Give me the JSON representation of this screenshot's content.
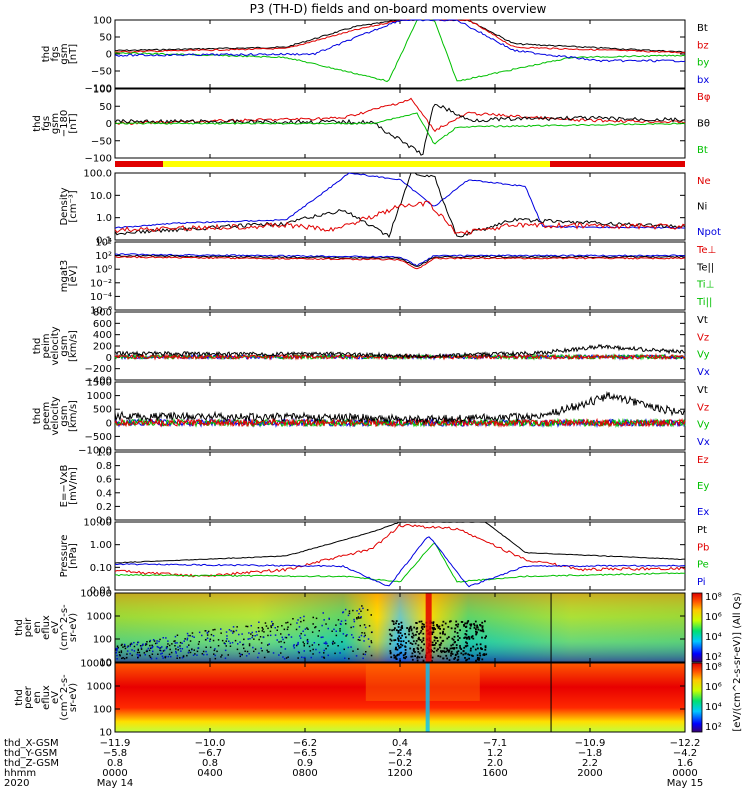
{
  "title": "P3 (TH-D) fields and on-board moments overview",
  "panels": [
    {
      "id": "fgs_gsm",
      "ylabel": [
        "thd",
        "fgs",
        "gsm",
        "[nT]"
      ],
      "ticks": [
        "100",
        "50",
        "0",
        "−50",
        "−100"
      ],
      "legend": [
        {
          "text": "Bt",
          "color": "#000000"
        },
        {
          "text": "bz",
          "color": "#e00000"
        },
        {
          "text": "by",
          "color": "#00c000"
        },
        {
          "text": "bx",
          "color": "#0000e0"
        }
      ]
    },
    {
      "id": "fgs_gsm180",
      "ylabel": [
        "thd",
        "fgs",
        "gsm",
        "−180",
        "[nT]"
      ],
      "ticks": [
        "100",
        "50",
        "0",
        "−50",
        "−100"
      ],
      "legend": [
        {
          "text": "Bφ",
          "color": "#e00000"
        },
        {
          "text": "Bθ",
          "color": "#000000"
        },
        {
          "text": "Bt",
          "color": "#00c000"
        }
      ]
    },
    {
      "id": "density",
      "ylabel": [
        "Density",
        "[cm⁻³]"
      ],
      "ticks": [
        "100.0",
        "10.0",
        "1.0",
        "0.1"
      ],
      "legend": [
        {
          "text": "Ne",
          "color": "#e00000"
        },
        {
          "text": "Ni",
          "color": "#000000"
        },
        {
          "text": "Npot",
          "color": "#0000e0"
        }
      ]
    },
    {
      "id": "temp",
      "ylabel": [
        "mgat3",
        "[eV]"
      ],
      "ticks": [
        "10⁴",
        "10²",
        "10⁰",
        "10⁻²",
        "10⁻⁴",
        "10⁻⁶"
      ],
      "legend": [
        {
          "text": "Te⊥",
          "color": "#e00000"
        },
        {
          "text": "Te||",
          "color": "#000000"
        },
        {
          "text": "Ti⊥",
          "color": "#00c000"
        },
        {
          "text": "Ti||",
          "color": "#00c000"
        }
      ]
    },
    {
      "id": "peim_vel",
      "ylabel": [
        "thd",
        "peim",
        "velocity",
        "gsm",
        "[km/s]"
      ],
      "ticks": [
        "800",
        "600",
        "400",
        "200",
        "0",
        "−200",
        "−400"
      ],
      "legend": [
        {
          "text": "Vt",
          "color": "#000000"
        },
        {
          "text": "Vz",
          "color": "#e00000"
        },
        {
          "text": "Vy",
          "color": "#00c000"
        },
        {
          "text": "Vx",
          "color": "#0000e0"
        }
      ]
    },
    {
      "id": "peem_vel",
      "ylabel": [
        "thd",
        "peem",
        "velocity",
        "gsm",
        "[km/s]"
      ],
      "ticks": [
        "1500",
        "1000",
        "500",
        "0",
        "−500",
        "−1000"
      ],
      "legend": [
        {
          "text": "Vt",
          "color": "#000000"
        },
        {
          "text": "Vz",
          "color": "#e00000"
        },
        {
          "text": "Vy",
          "color": "#00c000"
        },
        {
          "text": "Vx",
          "color": "#0000e0"
        }
      ]
    },
    {
      "id": "efield",
      "ylabel": [
        "E=−VxB",
        "[mV/m]"
      ],
      "ticks": [
        "1.0",
        "0.8",
        "0.6",
        "0.4",
        "0.2",
        "0.0"
      ],
      "legend": [
        {
          "text": "Ez",
          "color": "#e00000"
        },
        {
          "text": "Ey",
          "color": "#00c000"
        },
        {
          "text": "Ex",
          "color": "#0000e0"
        }
      ]
    },
    {
      "id": "pressure",
      "ylabel": [
        "Pressure",
        "[nPa]"
      ],
      "ticks": [
        "10.00",
        "1.00",
        "0.10",
        "0.01"
      ],
      "legend": [
        {
          "text": "Pt",
          "color": "#000000"
        },
        {
          "text": "Pb",
          "color": "#e00000"
        },
        {
          "text": "Pe",
          "color": "#00c000"
        },
        {
          "text": "Pi",
          "color": "#0000e0"
        }
      ]
    },
    {
      "id": "peir_spec",
      "ylabel": [
        "thd",
        "peir",
        "en",
        "eflux",
        "eV",
        "(cm^2-s-",
        "sr-eV)"
      ],
      "ticks": [
        "10000",
        "1000",
        "100",
        "10"
      ],
      "legend": []
    },
    {
      "id": "peer_spec",
      "ylabel": [
        "thd",
        "peer",
        "en",
        "eflux",
        "eV",
        "(cm^2-s-",
        "sr-eV)"
      ],
      "ticks": [
        "10000",
        "1000",
        "100",
        "10"
      ],
      "legend": []
    }
  ],
  "colorbar": {
    "label": "[eV/(cm^2-s-sr-eV)] (All Qs)",
    "ticks_top": [
      "10⁸",
      "10⁶",
      "10⁴",
      "10²"
    ],
    "ticks_bottom": [
      "10⁸",
      "10⁶",
      "10⁴",
      "10²"
    ]
  },
  "footer": {
    "row_labels": [
      "thd_X-GSM",
      "thd_Y-GSM",
      "thd_Z-GSM",
      "hhmm",
      "2020"
    ],
    "columns": [
      {
        "x": "−11.9",
        "y": "−5.8",
        "z": "0.8",
        "t": "0000",
        "d": "May 14"
      },
      {
        "x": "−10.0",
        "y": "−6.7",
        "z": "0.8",
        "t": "0400",
        "d": ""
      },
      {
        "x": "−6.2",
        "y": "−6.5",
        "z": "0.9",
        "t": "0800",
        "d": ""
      },
      {
        "x": "0.4",
        "y": "−2.4",
        "z": "−0.2",
        "t": "1200",
        "d": ""
      },
      {
        "x": "−7.1",
        "y": "1.2",
        "z": "2.0",
        "t": "1600",
        "d": ""
      },
      {
        "x": "−10.9",
        "y": "−1.8",
        "z": "2.2",
        "t": "2000",
        "d": ""
      },
      {
        "x": "−12.2",
        "y": "−4.2",
        "z": "1.6",
        "t": "0000",
        "d": "May 15"
      }
    ]
  },
  "chart_data": {
    "type": "line",
    "title": "P3 (TH-D) fields and on-board moments overview",
    "x_unit": "hhmm",
    "x": [
      "0000",
      "0400",
      "0800",
      "1200",
      "1600",
      "2000",
      "0000"
    ],
    "mode_bar": [
      {
        "from": "0000",
        "to": "0050",
        "color": "#e00000"
      },
      {
        "from": "0050",
        "to": "1740",
        "color": "#ffff00"
      },
      {
        "from": "1740",
        "to": "0000",
        "color": "#e00000"
      }
    ],
    "panels": [
      {
        "name": "thd fgs gsm [nT]",
        "ylim": [
          -100,
          100
        ],
        "series": [
          {
            "name": "Bt",
            "values": [
              15,
              20,
              40,
              100,
              40,
              18,
              15
            ]
          },
          {
            "name": "bz",
            "values": [
              12,
              18,
              35,
              90,
              35,
              15,
              12
            ]
          },
          {
            "name": "by",
            "values": [
              2,
              -2,
              -30,
              -80,
              -30,
              -2,
              2
            ]
          },
          {
            "name": "bx",
            "values": [
              -5,
              -3,
              5,
              100,
              5,
              -20,
              -18
            ]
          }
        ]
      },
      {
        "name": "thd fgs gsm-180 [nT]",
        "ylim": [
          -120,
          100
        ],
        "series": [
          {
            "name": "Bφ",
            "values": [
              5,
              3,
              10,
              60,
              -10,
              0,
              5
            ]
          },
          {
            "name": "Bθ",
            "values": [
              8,
              5,
              5,
              -100,
              15,
              10,
              10
            ]
          }
        ]
      },
      {
        "name": "Density [cm^-3]",
        "scale": "log",
        "ylim": [
          0.1,
          200
        ],
        "series": [
          {
            "name": "Ne",
            "values": [
              0.3,
              0.4,
              1.0,
              5.0,
              0.5,
              0.5,
              0.6
            ]
          },
          {
            "name": "Ni",
            "values": [
              0.2,
              0.3,
              1.0,
              150,
              0.4,
              0.4,
              0.5
            ]
          },
          {
            "name": "Npot",
            "values": [
              0.5,
              0.5,
              10,
              150,
              10,
              0.5,
              0.5
            ]
          }
        ]
      },
      {
        "name": "mgat3 [eV]",
        "scale": "log",
        "ylim": [
          1e-06,
          100000
        ],
        "series": [
          {
            "name": "Te⊥",
            "values": [
              300,
              300,
              300,
              30,
              300,
              300,
              300
            ]
          },
          {
            "name": "Te||",
            "values": [
              350,
              350,
              350,
              30,
              350,
              350,
              350
            ]
          },
          {
            "name": "Ti⊥",
            "values": [
              500,
              500,
              500,
              50,
              500,
              500,
              500
            ]
          }
        ]
      },
      {
        "name": "thd peim velocity gsm [km/s]",
        "ylim": [
          -400,
          800
        ],
        "series": [
          {
            "name": "Vt",
            "values": [
              40,
              40,
              30,
              10,
              40,
              100,
              50
            ]
          },
          {
            "name": "Vx",
            "values": [
              0,
              0,
              0,
              0,
              0,
              -50,
              0
            ]
          }
        ]
      },
      {
        "name": "thd peem velocity gsm [km/s]",
        "ylim": [
          -1000,
          1500
        ],
        "series": [
          {
            "name": "Vt",
            "values": [
              150,
              150,
              100,
              80,
              150,
              700,
              300
            ]
          },
          {
            "name": "Vx",
            "values": [
              0,
              0,
              0,
              -100,
              0,
              -500,
              0
            ]
          }
        ]
      },
      {
        "name": "E=-VxB [mV/m]",
        "ylim": [
          0,
          1
        ],
        "series": []
      },
      {
        "name": "Pressure [nPa]",
        "scale": "log",
        "ylim": [
          0.005,
          20
        ],
        "series": [
          {
            "name": "Pt",
            "values": [
              0.25,
              0.3,
              0.8,
              20,
              0.8,
              0.3,
              0.25
            ]
          },
          {
            "name": "Pb",
            "values": [
              0.1,
              0.05,
              0.2,
              15,
              0.3,
              0.08,
              0.08
            ]
          },
          {
            "name": "Pe",
            "values": [
              0.05,
              0.05,
              0.03,
              0.02,
              0.05,
              0.08,
              0.06
            ]
          },
          {
            "name": "Pi",
            "values": [
              0.12,
              0.12,
              0.12,
              5,
              0.15,
              0.15,
              0.15
            ]
          }
        ]
      }
    ]
  }
}
